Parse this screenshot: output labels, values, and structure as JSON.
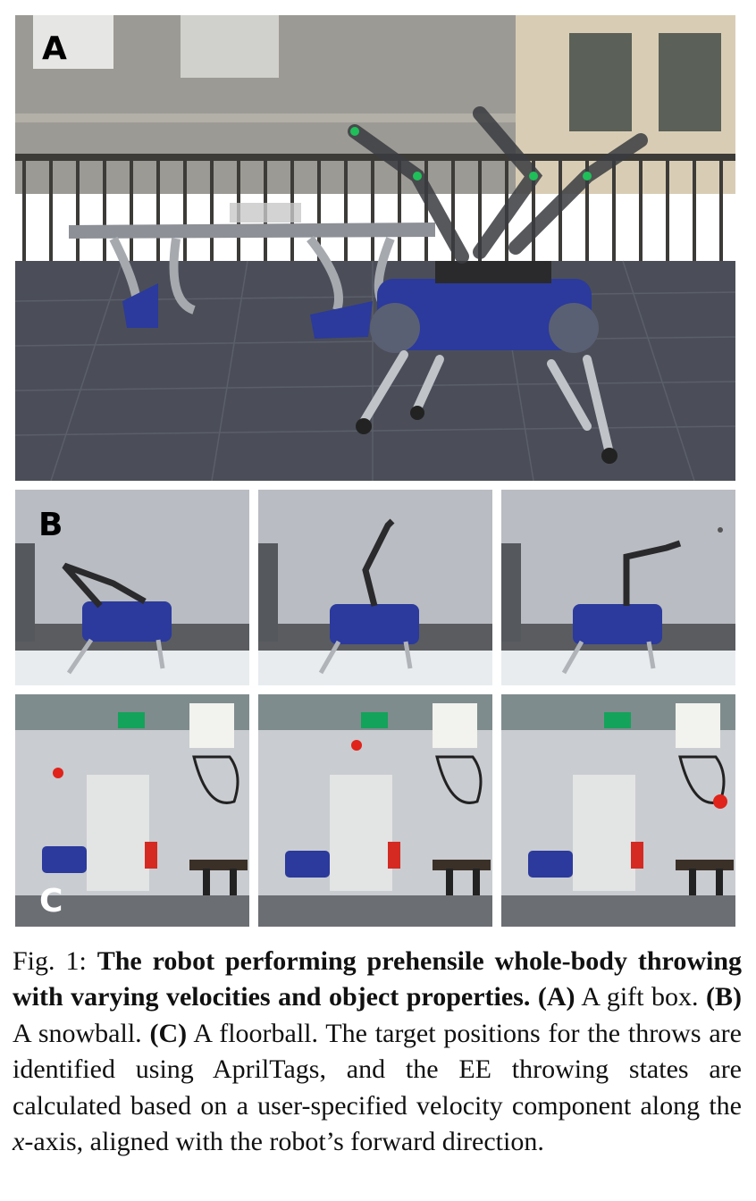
{
  "figure": {
    "panel_labels": {
      "a": "A",
      "b": "B",
      "c": "C"
    },
    "panels": {
      "a": {
        "description_icon": "robot-throwing-outdoor-photo"
      },
      "b": {
        "count": 3,
        "description_icon": "robot-throwing-snowball-photo"
      },
      "c": {
        "count": 3,
        "description_icon": "robot-throwing-floorball-photo"
      }
    },
    "colors": {
      "robot_blue": "#2b3a9c",
      "floor_gray": "#4b4e58",
      "sky_gray": "#b9bcc2",
      "indoor_wall": "#c9ccd0",
      "ball_red": "#e0231b",
      "exit_sign_green": "#14a35a"
    }
  },
  "caption": {
    "prefix": "Fig. 1:",
    "bold_title": "The robot performing prehensile whole-body throwing with varying velocities and object properties.",
    "item_a_label": "(A)",
    "item_a_text": "A gift box.",
    "item_b_label": "(B)",
    "item_b_text": "A snowball.",
    "item_c_label": "(C)",
    "item_c_text": "A floorball. The target positions for the throws are identified using AprilTags, and the EE throwing states are calculated based on a user-specified velocity component along the",
    "axis_var": "x",
    "tail_text": "-axis, aligned with the robot’s forward direction."
  }
}
